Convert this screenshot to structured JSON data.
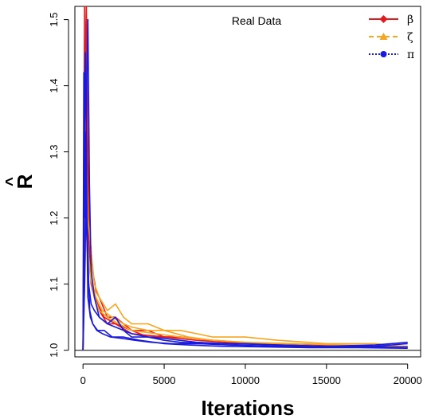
{
  "chart_data": {
    "type": "line",
    "title": "",
    "annotation": "Real Data",
    "xlabel": "Iterations",
    "ylabel": "R",
    "ylabel_hat": "^",
    "xlim": [
      -500,
      20800
    ],
    "ylim": [
      0.99,
      1.52
    ],
    "xticks": [
      0,
      5000,
      10000,
      15000,
      20000
    ],
    "xtick_labels": [
      "0",
      "5000",
      "10000",
      "15000",
      "20000"
    ],
    "yticks": [
      1.0,
      1.1,
      1.2,
      1.3,
      1.4,
      1.5
    ],
    "ytick_labels": [
      "1.0",
      "1.1",
      "1.2",
      "1.3",
      "1.4",
      "1.5"
    ],
    "reference_line": 1.0,
    "legend_position": "top-right",
    "grid": false,
    "series": [
      {
        "name": "β",
        "group": "beta",
        "color": "#e41a1c",
        "dash": "",
        "x": [
          0,
          100,
          200,
          300,
          400,
          600,
          800,
          1000,
          1500,
          2000,
          2500,
          3000,
          4000,
          5000,
          6000,
          8000,
          10000,
          12000,
          15000,
          18000,
          20000
        ],
        "y": [
          1.0,
          1.52,
          1.52,
          1.3,
          1.18,
          1.12,
          1.09,
          1.08,
          1.05,
          1.05,
          1.04,
          1.03,
          1.03,
          1.02,
          1.02,
          1.015,
          1.01,
          1.01,
          1.005,
          1.005,
          1.005
        ]
      },
      {
        "name": "",
        "group": "beta",
        "color": "#e41a1c",
        "dash": "",
        "x": [
          0,
          100,
          200,
          300,
          500,
          700,
          1000,
          1500,
          2000,
          3000,
          4000,
          6000,
          8000,
          11000,
          14000,
          17000,
          20000
        ],
        "y": [
          1.0,
          1.4,
          1.52,
          1.2,
          1.1,
          1.08,
          1.06,
          1.04,
          1.04,
          1.03,
          1.02,
          1.02,
          1.015,
          1.01,
          1.008,
          1.005,
          1.005
        ]
      },
      {
        "name": "",
        "group": "beta",
        "color": "#e41a1c",
        "dash": "",
        "x": [
          0,
          150,
          250,
          400,
          600,
          900,
          1300,
          2000,
          3000,
          5000,
          7000,
          10000,
          14000,
          20000
        ],
        "y": [
          1.0,
          1.45,
          1.25,
          1.14,
          1.09,
          1.07,
          1.05,
          1.04,
          1.025,
          1.02,
          1.015,
          1.01,
          1.005,
          1.004
        ]
      },
      {
        "name": "ζ",
        "group": "zeta",
        "color": "#f5a623",
        "dash": "6,4",
        "x": [
          0,
          100,
          200,
          300,
          500,
          700,
          1000,
          1500,
          2000,
          2500,
          3000,
          3500,
          4000,
          5000,
          6000,
          7000,
          8000,
          10000,
          12000,
          15000,
          18000,
          20000
        ],
        "y": [
          1.0,
          1.35,
          1.3,
          1.2,
          1.15,
          1.1,
          1.08,
          1.06,
          1.07,
          1.05,
          1.04,
          1.04,
          1.04,
          1.03,
          1.03,
          1.025,
          1.02,
          1.02,
          1.015,
          1.01,
          1.01,
          1.005
        ]
      },
      {
        "name": "",
        "group": "zeta",
        "color": "#f5a623",
        "dash": "",
        "x": [
          0,
          150,
          300,
          500,
          800,
          1200,
          1800,
          2500,
          3000,
          4000,
          5000,
          6500,
          8000,
          10000,
          13000,
          16000,
          20000
        ],
        "y": [
          1.0,
          1.25,
          1.15,
          1.11,
          1.08,
          1.06,
          1.05,
          1.04,
          1.035,
          1.03,
          1.03,
          1.02,
          1.015,
          1.012,
          1.01,
          1.008,
          1.006
        ]
      },
      {
        "name": "",
        "group": "zeta",
        "color": "#f5a623",
        "dash": "",
        "x": [
          0,
          200,
          400,
          700,
          1000,
          1500,
          2200,
          3000,
          4500,
          6000,
          8000,
          11000,
          15000,
          20000
        ],
        "y": [
          1.0,
          1.2,
          1.12,
          1.08,
          1.06,
          1.05,
          1.04,
          1.03,
          1.025,
          1.02,
          1.015,
          1.01,
          1.006,
          1.004
        ]
      },
      {
        "name": "π",
        "group": "pi",
        "color": "#1a1adb",
        "dash": "2,2",
        "x": [
          0,
          50,
          100,
          200,
          300,
          400,
          500,
          700,
          1000,
          1500,
          2000,
          2500,
          3000,
          4000,
          5000,
          6000,
          8000,
          10000,
          12000,
          15000,
          18000,
          20000
        ],
        "y": [
          1.0,
          1.42,
          1.2,
          1.35,
          1.5,
          1.25,
          1.12,
          1.08,
          1.05,
          1.04,
          1.05,
          1.03,
          1.02,
          1.02,
          1.015,
          1.012,
          1.01,
          1.01,
          1.008,
          1.006,
          1.006,
          1.01
        ]
      },
      {
        "name": "",
        "group": "pi",
        "color": "#1a1adb",
        "dash": "",
        "x": [
          0,
          80,
          150,
          250,
          350,
          500,
          700,
          1000,
          1500,
          2000,
          3000,
          4000,
          5000,
          7000,
          9000,
          12000,
          15000,
          18000,
          20000
        ],
        "y": [
          1.0,
          1.3,
          1.45,
          1.2,
          1.1,
          1.07,
          1.06,
          1.05,
          1.04,
          1.035,
          1.025,
          1.02,
          1.018,
          1.012,
          1.01,
          1.008,
          1.006,
          1.008,
          1.012
        ]
      },
      {
        "name": "",
        "group": "pi",
        "color": "#1a1adb",
        "dash": "",
        "x": [
          0,
          100,
          200,
          300,
          450,
          600,
          900,
          1300,
          1800,
          2500,
          3500,
          5000,
          6500,
          8500,
          11000,
          14000,
          17000,
          20000
        ],
        "y": [
          1.0,
          1.1,
          1.25,
          1.08,
          1.05,
          1.04,
          1.03,
          1.03,
          1.02,
          1.02,
          1.015,
          1.01,
          1.008,
          1.006,
          1.005,
          1.004,
          1.004,
          1.003
        ]
      },
      {
        "name": "",
        "group": "pi",
        "color": "#1a1adb",
        "dash": "",
        "x": [
          0,
          60,
          120,
          220,
          320,
          420,
          600,
          850,
          1200,
          1700,
          2400,
          3200,
          4200,
          5500,
          7000,
          9000,
          12000,
          16000,
          20000
        ],
        "y": [
          1.0,
          1.15,
          1.33,
          1.18,
          1.12,
          1.06,
          1.04,
          1.03,
          1.025,
          1.02,
          1.018,
          1.015,
          1.012,
          1.01,
          1.01,
          1.008,
          1.006,
          1.005,
          1.005
        ]
      }
    ]
  }
}
